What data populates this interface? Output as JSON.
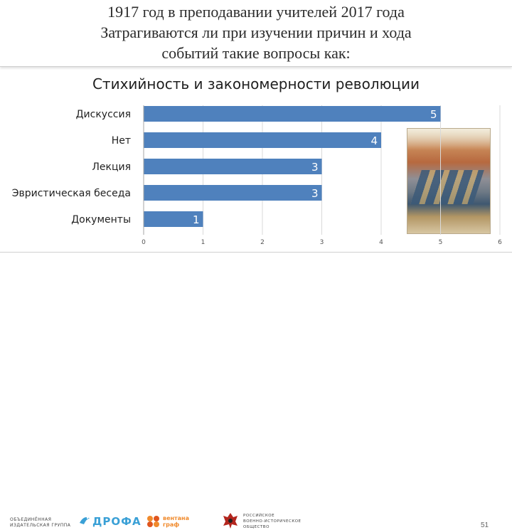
{
  "slide": {
    "title_lines": [
      "1917 год в преподавании учителей 2017 года",
      "Затрагиваются ли при изучении причин и хода",
      "событий такие вопросы как:"
    ],
    "page_number": "51"
  },
  "chart_data": {
    "type": "bar",
    "orientation": "horizontal",
    "title": "Стихийность и закономерности революции",
    "categories": [
      "Дискуссия",
      "Нет",
      "Лекция",
      "Эвристическая беседа",
      "Документы"
    ],
    "values": [
      5,
      4,
      3,
      3,
      1
    ],
    "data_labels": [
      "5",
      "4",
      "3",
      "3",
      "1"
    ],
    "xlim": [
      0,
      6
    ],
    "x_ticks": [
      "0",
      "1",
      "2",
      "3",
      "4",
      "5",
      "6"
    ],
    "gridlines": true,
    "legend": "none",
    "bar_color": "#4f81bd"
  },
  "footer": {
    "logo1_lines": [
      "ОБЪЕДИНЁННАЯ",
      "ИЗДАТЕЛЬСКАЯ ГРУППА"
    ],
    "logo2_text": "ДРОФА",
    "logo3_lines": [
      "вентана",
      "граф"
    ],
    "logo4_lines": [
      "РОССИЙСКОЕ",
      "ВОЕННО-ИСТОРИЧЕСКОЕ",
      "ОБЩЕСТВО"
    ]
  },
  "colors": {
    "accent_blue": "#3aa0d6",
    "accent_orange": "#f08a2c"
  }
}
